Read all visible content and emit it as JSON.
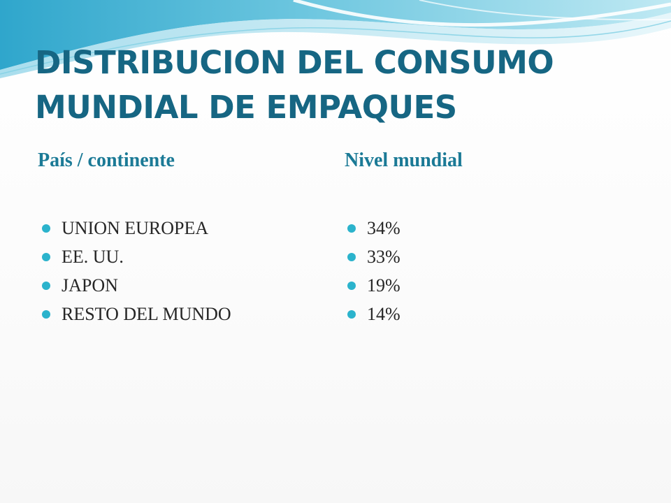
{
  "slide": {
    "title_lines": [
      "DISTRIBUCION DEL CONSUMO",
      "MUNDIAL DE EMPAQUES"
    ],
    "columns": {
      "left": {
        "heading": "País / continente",
        "items": [
          "UNION EUROPEA",
          "EE. UU.",
          "JAPON",
          "RESTO DEL MUNDO"
        ]
      },
      "right": {
        "heading": "Nivel mundial",
        "items": [
          "34%",
          "33%",
          "19%",
          "14%"
        ]
      }
    }
  },
  "colors": {
    "title": "#166683",
    "heading": "#1b7a96",
    "bullet": "#2bb3cc",
    "wave_dark": "#3aaed0",
    "wave_light": "#bfe8f2"
  }
}
